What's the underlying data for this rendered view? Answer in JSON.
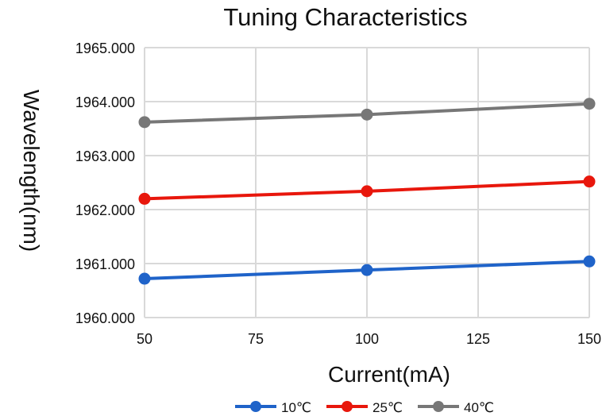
{
  "chart_data": {
    "type": "line",
    "title": "Tuning Characteristics",
    "xlabel": "Current(mA)",
    "ylabel": "Wavelength(nm)",
    "xlim": [
      50,
      150
    ],
    "ylim": [
      1960,
      1965
    ],
    "x_ticks": [
      "50",
      "75",
      "100",
      "125",
      "150"
    ],
    "y_ticks": [
      "1960.000",
      "1961.000",
      "1962.000",
      "1963.000",
      "1964.000",
      "1965.000"
    ],
    "grid": true,
    "legend_position": "bottom",
    "x": [
      50,
      100,
      150
    ],
    "series": [
      {
        "name": "10℃",
        "color": "#1f63c9",
        "values": [
          1960.72,
          1960.88,
          1961.04
        ]
      },
      {
        "name": "25℃",
        "color": "#e8170c",
        "values": [
          1962.2,
          1962.34,
          1962.52
        ]
      },
      {
        "name": "40℃",
        "color": "#777777",
        "values": [
          1963.62,
          1963.76,
          1963.96
        ]
      }
    ]
  }
}
